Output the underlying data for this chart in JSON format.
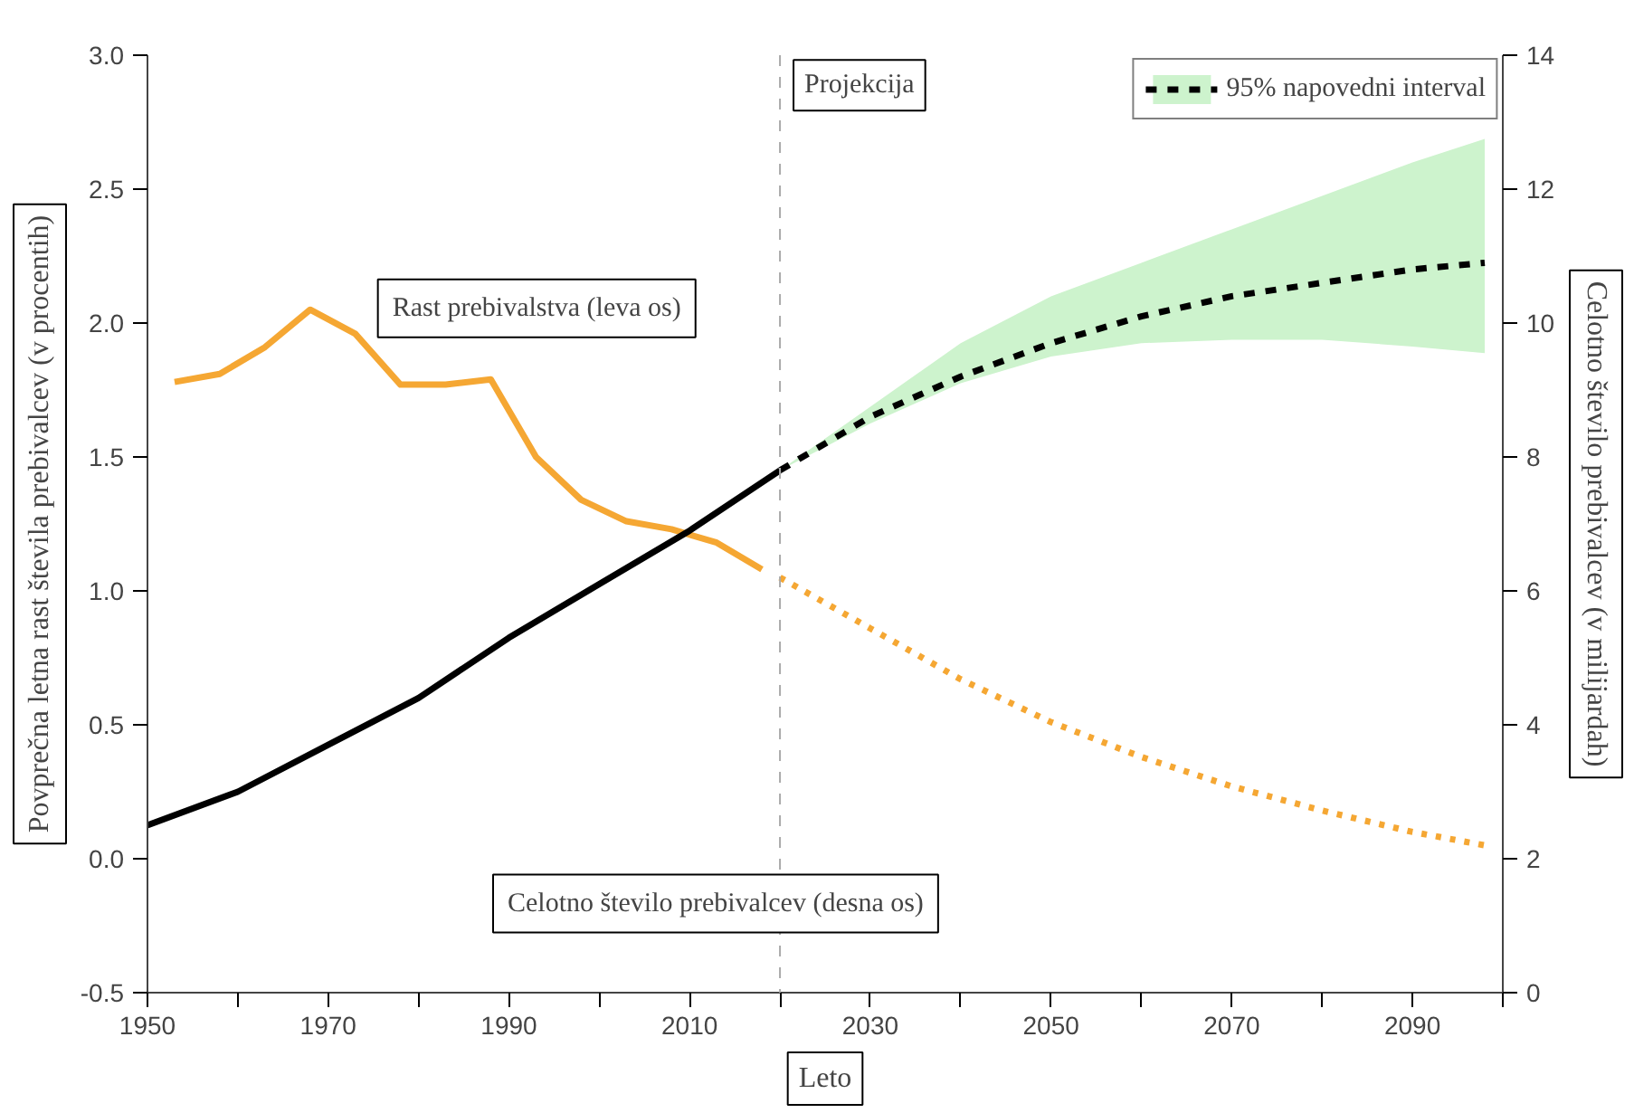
{
  "chart_data": {
    "type": "line",
    "xlabel": "Leto",
    "ylabel": "Povprečna letna rast števila prebivalcev (v procentih)",
    "y2label": "Celotno število prebivalcev (v milijardah)",
    "xlim": [
      1950,
      2100
    ],
    "xticks": [
      1950,
      {
        "value": 1960,
        "label": null
      },
      1970,
      {
        "value": 1980,
        "label": null
      },
      1990,
      {
        "value": 2000,
        "label": null
      },
      2010,
      {
        "value": 2020,
        "label": null
      },
      2030,
      {
        "value": 2040,
        "label": null
      },
      2050,
      {
        "value": 2060,
        "label": null
      },
      2070,
      {
        "value": 2080,
        "label": null
      },
      2090,
      {
        "value": 2100,
        "label": null
      }
    ],
    "ylim": [
      -0.5,
      3.0
    ],
    "yticks": [
      {
        "value": -0.5,
        "label": "-0.5"
      },
      {
        "value": 0,
        "label": "0.0"
      },
      {
        "value": 0.5,
        "label": "0.5"
      },
      {
        "value": 1,
        "label": "1.0"
      },
      {
        "value": 1.5,
        "label": "1.5"
      },
      {
        "value": 2,
        "label": "2.0"
      },
      {
        "value": 2.5,
        "label": "2.5"
      },
      {
        "value": 3,
        "label": "3.0"
      }
    ],
    "y2lim": [
      0,
      14
    ],
    "y2ticks": [
      0,
      2,
      4,
      6,
      8,
      10,
      12,
      14
    ],
    "grid": false,
    "legend": "top right",
    "series": [
      {
        "name": "Rast prebivalstva (leva os)",
        "color": "#f5a733",
        "axis": "y",
        "line_style": "solid",
        "x": [
          1953,
          1958,
          1963,
          1968,
          1973,
          1978,
          1983,
          1988,
          1993,
          1998,
          2003,
          2008,
          2013,
          2018
        ],
        "values": [
          1.78,
          1.81,
          1.91,
          2.05,
          1.96,
          1.77,
          1.77,
          1.79,
          1.5,
          1.34,
          1.26,
          1.23,
          1.18,
          1.08
        ]
      },
      {
        "color": "#f5a733",
        "axis": "y",
        "line_style": "dotted",
        "x": [
          2020,
          2030,
          2040,
          2050,
          2060,
          2070,
          2080,
          2090,
          2098
        ],
        "values": [
          1.05,
          0.86,
          0.67,
          0.51,
          0.38,
          0.27,
          0.18,
          0.1,
          0.05
        ]
      },
      {
        "name": "Celotno število prebivalcev (desna os)",
        "color": "#000000",
        "axis": "y2",
        "line_style": "solid",
        "x": [
          1950,
          1960,
          1970,
          1980,
          1990,
          2000,
          2010,
          2020
        ],
        "values": [
          2.5,
          3.0,
          3.7,
          4.4,
          5.3,
          6.1,
          6.9,
          7.8
        ]
      },
      {
        "name": "95% napovedni interval",
        "color": "#000000",
        "axis": "y2",
        "line_style": "dashed",
        "x": [
          2020,
          2030,
          2040,
          2050,
          2060,
          2070,
          2080,
          2090,
          2098
        ],
        "values": [
          7.8,
          8.6,
          9.2,
          9.7,
          10.1,
          10.4,
          10.6,
          10.8,
          10.9
        ],
        "lower": [
          7.8,
          8.5,
          9.1,
          9.5,
          9.7,
          9.75,
          9.75,
          9.65,
          9.55
        ],
        "upper": [
          7.8,
          8.75,
          9.7,
          10.4,
          10.9,
          11.4,
          11.9,
          12.4,
          12.75
        ]
      }
    ],
    "ref_lines": [
      {
        "axis": "x",
        "value": 2020,
        "label": "Projekcija",
        "color": "#aaaaaa",
        "line_style": "dashed"
      }
    ]
  }
}
